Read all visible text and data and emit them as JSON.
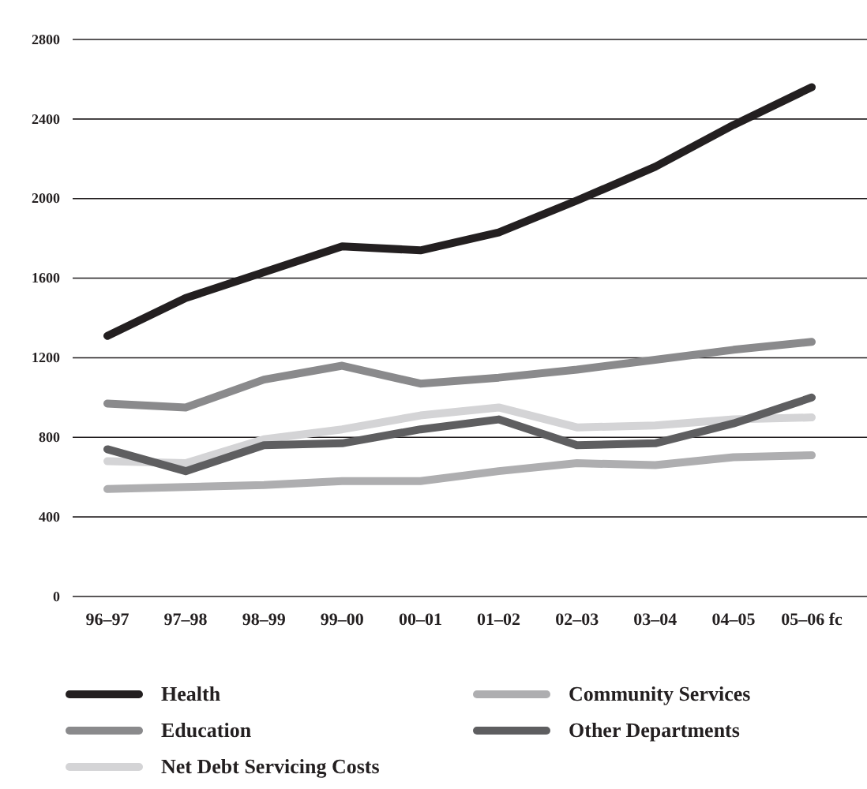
{
  "chart_data": {
    "type": "line",
    "categories": [
      "96–97",
      "97–98",
      "98–99",
      "99–00",
      "00–01",
      "01–02",
      "02–03",
      "03–04",
      "04–05",
      "05–06 fc"
    ],
    "series": [
      {
        "name": "Health",
        "color": "#231f20",
        "values": [
          1310,
          1500,
          1630,
          1760,
          1740,
          1830,
          1990,
          2160,
          2370,
          2560
        ]
      },
      {
        "name": "Education",
        "color": "#8a8a8c",
        "values": [
          970,
          950,
          1090,
          1160,
          1070,
          1100,
          1140,
          1190,
          1240,
          1280
        ]
      },
      {
        "name": "Net Debt Servicing Costs",
        "color": "#d4d4d6",
        "values": [
          680,
          670,
          790,
          840,
          910,
          950,
          850,
          860,
          890,
          900
        ]
      },
      {
        "name": "Community Services",
        "color": "#aeaeb0",
        "values": [
          540,
          550,
          560,
          580,
          580,
          630,
          670,
          660,
          700,
          710
        ]
      },
      {
        "name": "Other Departments",
        "color": "#5e5e60",
        "values": [
          740,
          630,
          760,
          770,
          840,
          890,
          760,
          770,
          870,
          1000
        ]
      }
    ],
    "ylim": [
      0,
      2800
    ],
    "yticks": [
      0,
      400,
      800,
      1200,
      1600,
      2000,
      2400,
      2800
    ],
    "grid": "y",
    "legend": "bottom",
    "marker": "none",
    "line_style": "solid"
  }
}
